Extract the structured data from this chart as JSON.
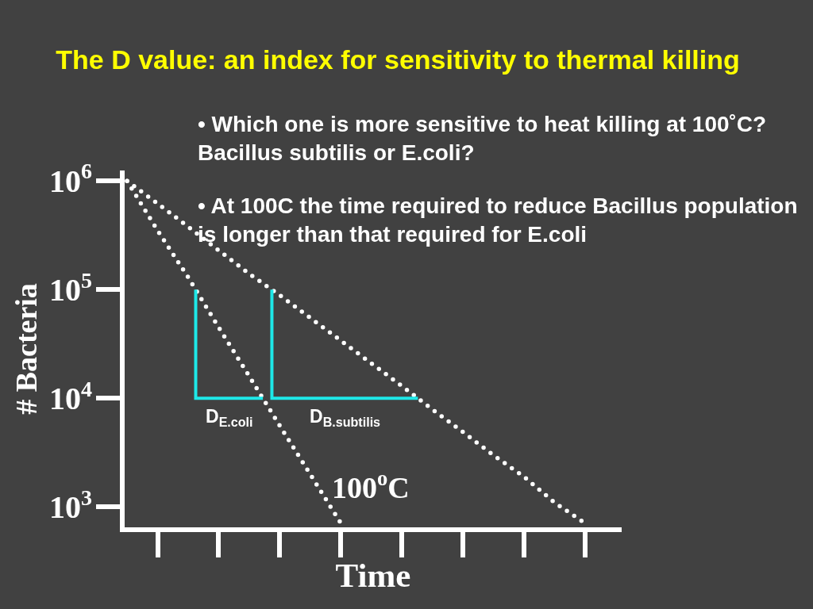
{
  "chart_data": {
    "type": "line",
    "title": "The D value: an index for sensitivity to thermal killing",
    "xlabel": "Time",
    "ylabel": "# Bacteria",
    "annotations": [
      "• Which one is more sensitive to heat killing at 100˚C?\nBacillus subtilis or E.coli?",
      "• At 100C the time required to reduce Bacillus population\nis longer than that required for E.coli",
      "100$^{o}$C",
      "D$_{E.coli}$",
      "D$_{B.subtilis}$"
    ],
    "categories": [
      null,
      null,
      null,
      null,
      null,
      null,
      null,
      null,
      null,
      null,
      null,
      null,
      null,
      null,
      null,
      null
    ],
    "series": [
      {
        "color": "#ffffff",
        "values": [
          1000000,
          350000,
          130000,
          45000,
          16000,
          5600,
          2000,
          710,
          null,
          null,
          null,
          null,
          null,
          null,
          null,
          null
        ]
      },
      {
        "color": "#ffffff",
        "values": [
          1000000,
          620000,
          380000,
          230000,
          140000,
          89000,
          55000,
          34000,
          21000,
          13000,
          7900,
          4900,
          3000,
          1900,
          1100,
          710
        ]
      }
    ],
    "log": true,
    "ylim": [
      650,
      1250000
    ],
    "yticks": [
      {
        "value": 1000,
        "label": "10$^{3}$"
      },
      {
        "value": 10000,
        "label": "10$^{4}$"
      },
      {
        "value": 100000,
        "label": "10$^{5}$"
      },
      {
        "value": 1000000,
        "label": "10$^{6}$"
      }
    ],
    "tick_labels": "y",
    "line_style": "dotted"
  }
}
